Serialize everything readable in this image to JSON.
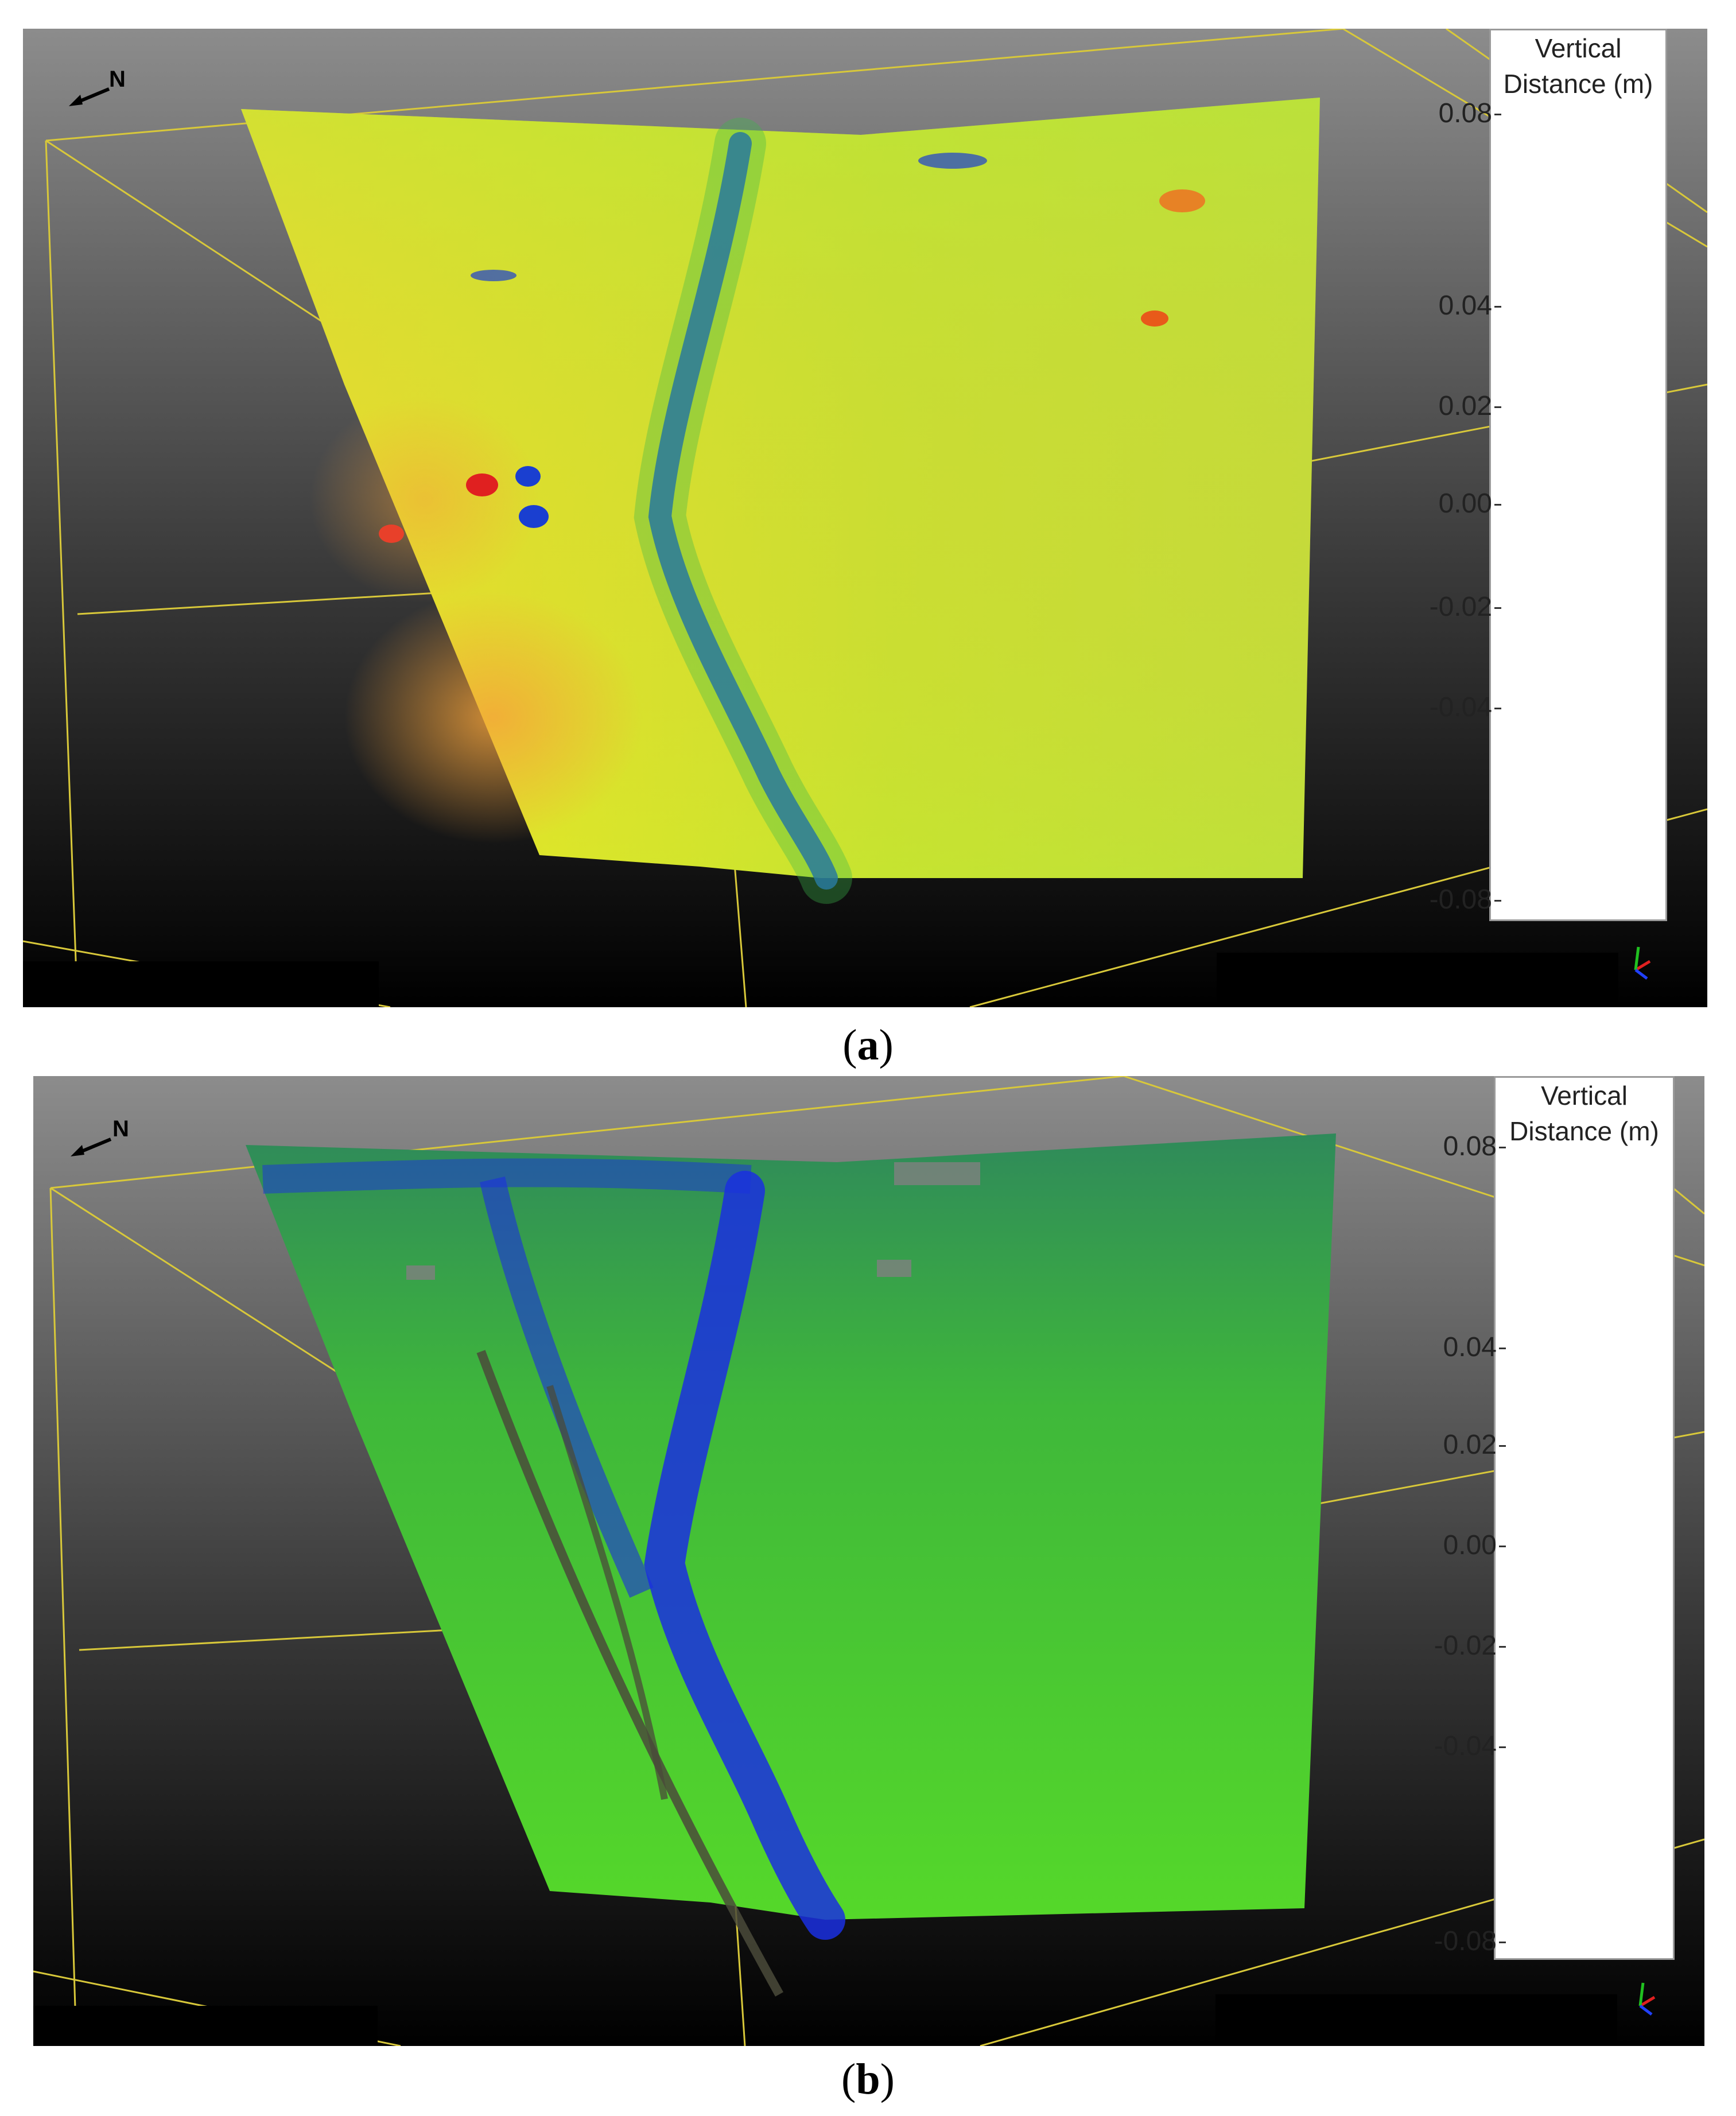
{
  "figure": {
    "panels": [
      {
        "id": "a",
        "caption_letter": "a",
        "north_label": "N",
        "colorbar": {
          "title_line1": "Vertical",
          "title_line2": "Distance (m)",
          "ticks": [
            "0.08",
            "0.04",
            "0.02",
            "0.00",
            "-0.02",
            "-0.04",
            "-0.08"
          ]
        }
      },
      {
        "id": "b",
        "caption_letter": "b",
        "north_label": "N",
        "colorbar": {
          "title_line1": "Vertical",
          "title_line2": "Distance (m)",
          "ticks": [
            "0.08",
            "0.04",
            "0.02",
            "0.00",
            "-0.02",
            "-0.04",
            "-0.08"
          ]
        }
      }
    ]
  },
  "colors": {
    "viewport_top": "#8a8a8a",
    "viewport_bottom": "#000000",
    "bbox_lines": "#d8c83a"
  }
}
